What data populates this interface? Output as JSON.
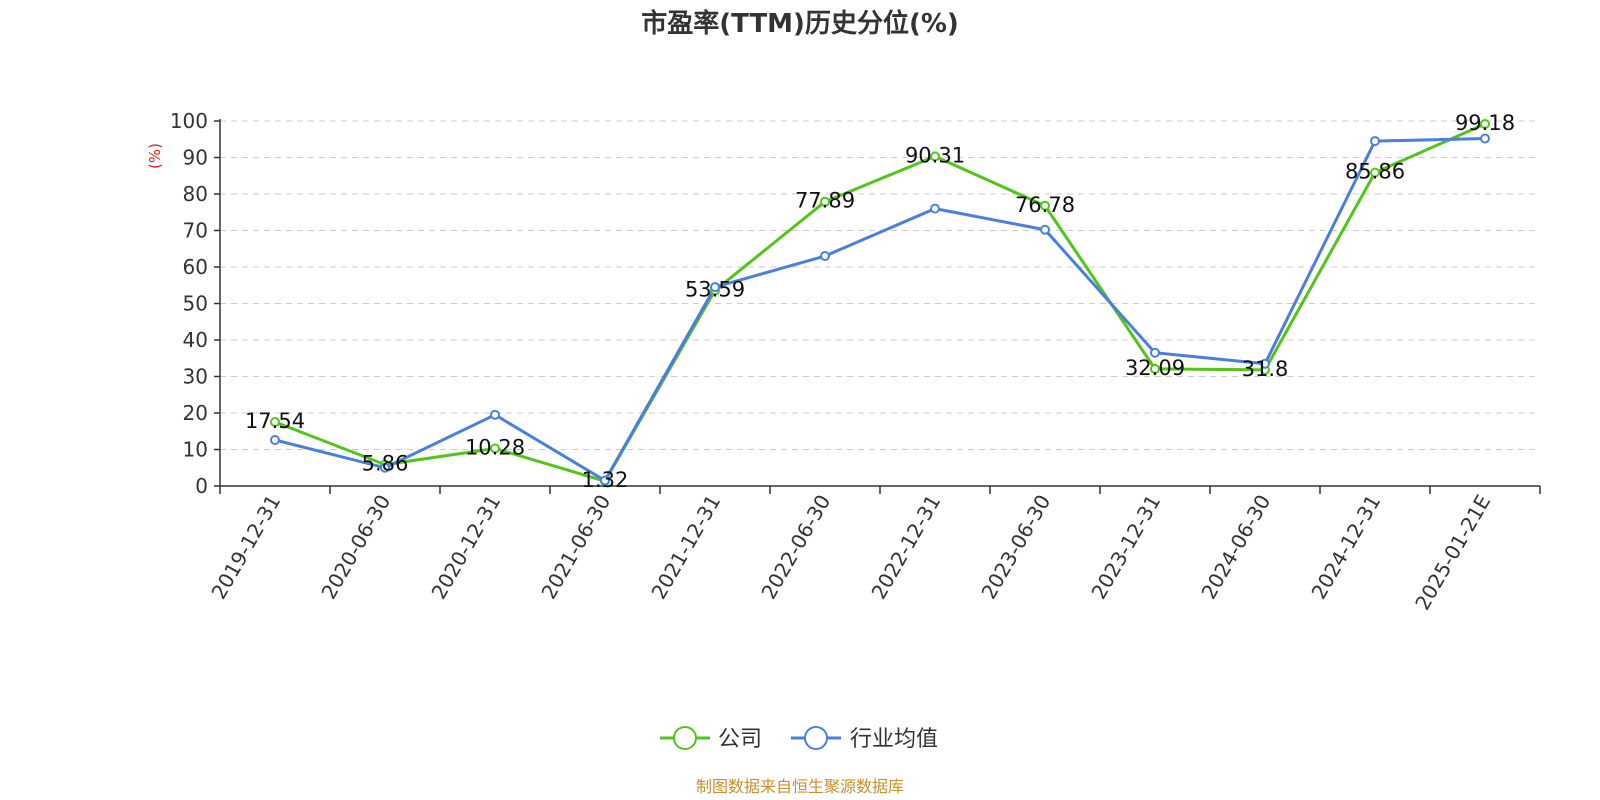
{
  "chart_data": {
    "type": "line",
    "title": "市盈率(TTM)历史分位(%)",
    "ylabel": "(%)",
    "xlabel": "",
    "ylim": [
      0,
      100
    ],
    "yticks": [
      0,
      10,
      20,
      30,
      40,
      50,
      60,
      70,
      80,
      90,
      100
    ],
    "grid": true,
    "legend_position": "bottom",
    "categories": [
      "2019-12-31",
      "2020-06-30",
      "2020-12-31",
      "2021-06-30",
      "2021-12-31",
      "2022-06-30",
      "2022-12-31",
      "2023-06-30",
      "2023-12-31",
      "2024-06-30",
      "2024-12-31",
      "2025-01-21E"
    ],
    "series": [
      {
        "name": "公司",
        "color": "#52c41a",
        "values": [
          17.54,
          5.86,
          10.28,
          1.32,
          53.59,
          77.89,
          90.31,
          76.78,
          32.09,
          31.8,
          85.86,
          99.18
        ],
        "labels": [
          "17.54",
          "5.86",
          "10.28",
          "1.32",
          "53.59",
          "77.89",
          "90.31",
          "76.78",
          "32.09",
          "31.8",
          "85.86",
          "99.18"
        ]
      },
      {
        "name": "行业均值",
        "color": "#4a80dc",
        "values": [
          12.6,
          5.0,
          19.5,
          1.5,
          54.5,
          63.0,
          76.0,
          70.2,
          36.5,
          33.5,
          94.5,
          95.2
        ]
      }
    ],
    "source": "制图数据来自恒生聚源数据库",
    "source_color": "#c8902c",
    "unit_color": "#e02020"
  }
}
